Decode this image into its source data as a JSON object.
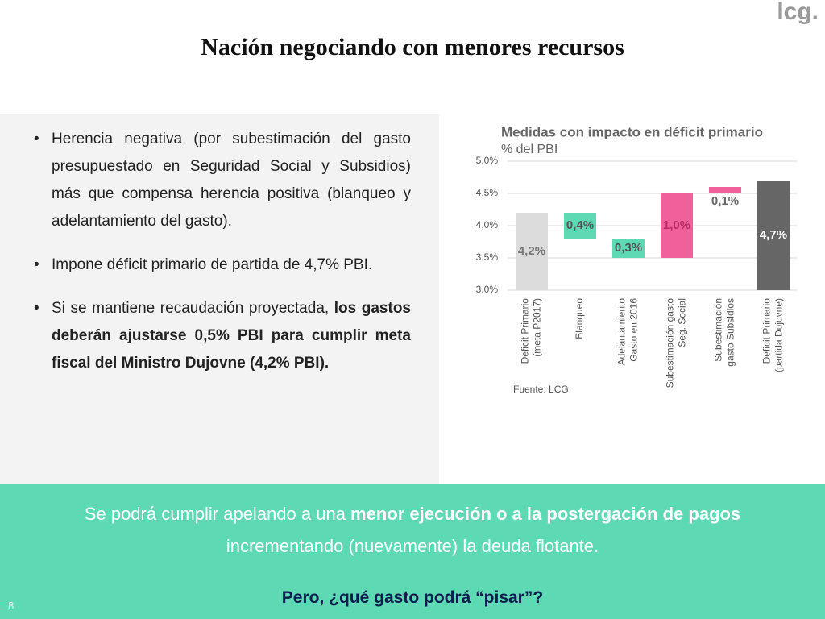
{
  "logo": "lcg.",
  "title": "Nación negociando con menores recursos",
  "bullets": [
    [
      {
        "text": "Herencia negativa (por subestimación del gasto presupuestado en Seguridad Social y Subsidios) más que compensa herencia positiva (blanqueo y adelantamiento del gasto)."
      }
    ],
    [
      {
        "text": "Impone déficit primario de partida de 4,7% PBI."
      }
    ],
    [
      {
        "text": "Si se mantiene recaudación proyectada, "
      },
      {
        "text": "los gastos deberán ajustarse 0,5% PBI para cumplir meta fiscal del Ministro Dujovne (4,2% PBI).",
        "bold": true
      }
    ]
  ],
  "chart_data": {
    "type": "waterfall",
    "title": "Medidas con impacto en déficit primario",
    "subtitle": "% del PBI",
    "categories": [
      "Deficit Primario\n(meta P2017)",
      "Blanqueo",
      "Adelantamiento\nGasto en 2016",
      "Subestimación gasto\nSeg. Social",
      "Subestimación\ngasto Subsidios",
      "Deficit Primario\n(partida Dujovne)"
    ],
    "values": [
      4.2,
      0.4,
      0.3,
      1.0,
      0.1,
      4.7
    ],
    "value_labels": [
      "4,2%",
      "0,4%",
      "0,3%",
      "1,0%",
      "0,1%",
      "4,7%"
    ],
    "measure": [
      "total",
      "decrease",
      "decrease",
      "increase",
      "increase",
      "total"
    ],
    "colors": [
      "#dcdcdc",
      "#5dd9b3",
      "#5dd9b3",
      "#f0609a",
      "#f0609a",
      "#666666"
    ],
    "ylim": [
      3,
      5
    ],
    "yticks": [
      {
        "value": 3,
        "label": "3,0%"
      },
      {
        "value": 3.5,
        "label": "3,5%"
      },
      {
        "value": 4,
        "label": "4,0%"
      },
      {
        "value": 4.5,
        "label": "4,5%"
      },
      {
        "value": 5,
        "label": "5,0%"
      }
    ],
    "grid": true,
    "source": "Fuente: LCG"
  },
  "footer": {
    "line": [
      {
        "text": "Se podrá cumplir apelando a una "
      },
      {
        "text": "menor ejecución o a la postergación de pagos",
        "bold": true
      },
      {
        "text": " incrementando (nuevamente) la deuda flotante."
      }
    ],
    "question": "Pero, ¿qué gasto podrá “pisar”?",
    "page": "8"
  }
}
